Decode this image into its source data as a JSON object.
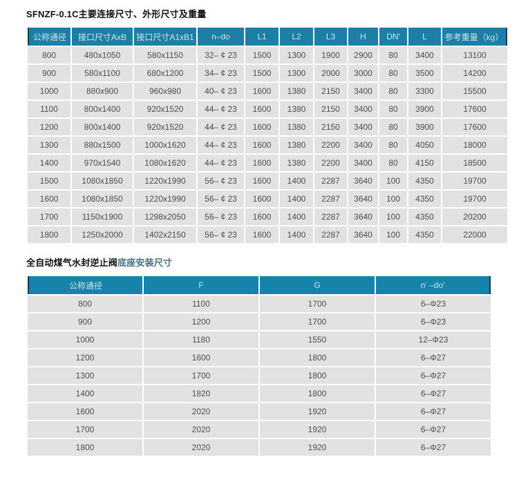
{
  "colors": {
    "header_bg": "#1c80a6",
    "header_bg2": "#1583aa",
    "header_text": "#cfe2ea",
    "header_edge": "#103c50",
    "row_bg": "#e2e2e0",
    "cell_text": "#4d4d4d",
    "title2_accent": "#46707f"
  },
  "table1": {
    "title": "SFNZF-0.1C主要连接尺寸、外形尺寸及重量",
    "headers": [
      "公称通径",
      "接口尺寸AxB",
      "接口尺寸A1xB1",
      "n–do",
      "L1",
      "L2",
      "L3",
      "H",
      "DN'",
      "L",
      "参考重量（kg）"
    ],
    "rows": [
      [
        "800",
        "480x1050",
        "580x1150",
        "32– ¢ 23",
        "1500",
        "1300",
        "1900",
        "2900",
        "80",
        "3400",
        "13100"
      ],
      [
        "900",
        "580x1100",
        "680x1200",
        "34– ¢ 23",
        "1500",
        "1300",
        "2000",
        "3000",
        "80",
        "3500",
        "14200"
      ],
      [
        "1000",
        "880x900",
        "960x980",
        "40– ¢ 23",
        "1600",
        "1380",
        "2150",
        "3400",
        "80",
        "3300",
        "15500"
      ],
      [
        "1100",
        "800x1400",
        "920x1520",
        "44– ¢ 23",
        "1600",
        "1380",
        "2150",
        "3400",
        "80",
        "3900",
        "17600"
      ],
      [
        "1200",
        "800x1400",
        "920x1520",
        "44– ¢ 23",
        "1600",
        "1380",
        "2150",
        "3400",
        "80",
        "3900",
        "17600"
      ],
      [
        "1300",
        "880x1500",
        "1000x1620",
        "44– ¢ 23",
        "1600",
        "1380",
        "2200",
        "3400",
        "80",
        "4050",
        "18000"
      ],
      [
        "1400",
        "970x1540",
        "1080x1620",
        "44– ¢ 23",
        "1600",
        "1380",
        "2200",
        "3400",
        "80",
        "4150",
        "18500"
      ],
      [
        "1500",
        "1080x1850",
        "1220x1990",
        "56– ¢ 23",
        "1600",
        "1400",
        "2287",
        "3640",
        "100",
        "4350",
        "19700"
      ],
      [
        "1600",
        "1080x1850",
        "1220x1990",
        "56– ¢ 23",
        "1600",
        "1400",
        "2287",
        "3640",
        "100",
        "4350",
        "19700"
      ],
      [
        "1700",
        "1150x1900",
        "1298x2050",
        "56– ¢ 23",
        "1600",
        "1400",
        "2287",
        "3640",
        "100",
        "4350",
        "20200"
      ],
      [
        "1800",
        "1250x2000",
        "1402x2150",
        "56– ¢ 23",
        "1600",
        "1400",
        "2287",
        "3640",
        "100",
        "4350",
        "22000"
      ]
    ]
  },
  "table2": {
    "title_main": "全自动煤气水封逆止阀",
    "title_suffix": "底座安装尺寸",
    "headers": [
      "公称通径",
      "F",
      "G",
      "n' –do'"
    ],
    "rows": [
      [
        "800",
        "1100",
        "1700",
        "6–Φ23"
      ],
      [
        "900",
        "1200",
        "1700",
        "6–Φ23"
      ],
      [
        "1000",
        "1180",
        "1550",
        "12–Φ23"
      ],
      [
        "1200",
        "1600",
        "1800",
        "6–Φ27"
      ],
      [
        "1300",
        "1700",
        "1800",
        "6–Φ27"
      ],
      [
        "1400",
        "1820",
        "1800",
        "6–Φ27"
      ],
      [
        "1600",
        "2020",
        "1920",
        "6–Φ27"
      ],
      [
        "1700",
        "2020",
        "1920",
        "6–Φ27"
      ],
      [
        "1800",
        "2020",
        "1920",
        "6–Φ27"
      ]
    ]
  }
}
